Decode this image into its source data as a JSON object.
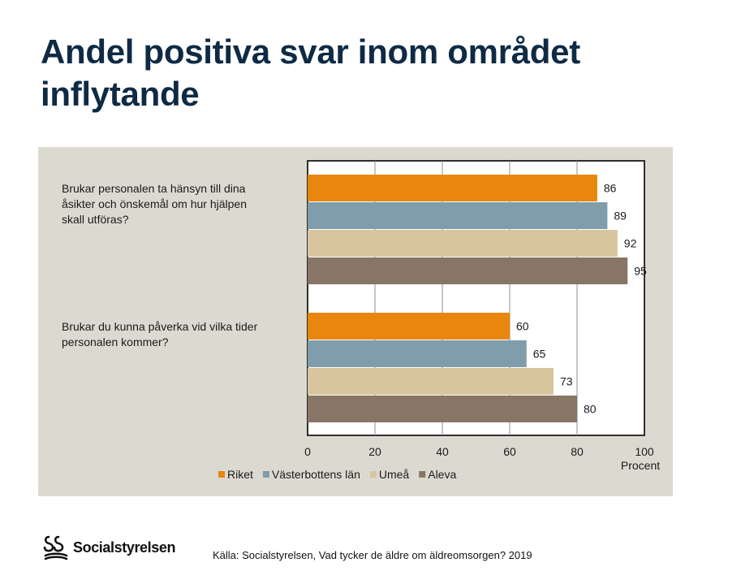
{
  "page": {
    "title": "Andel positiva svar inom området inflytande",
    "source": "Källa: Socialstyrelsen, Vad tycker de äldre om äldreomsorgen? 2019",
    "logo_text": "Socialstyrelsen"
  },
  "chart_data": {
    "type": "bar",
    "orientation": "horizontal",
    "categories": [
      "Brukar personalen ta hänsyn till dina åsikter och önskemål om hur hjälpen skall utföras?",
      "Brukar du kunna påverka vid vilka tider personalen kommer?"
    ],
    "category_lines": [
      [
        "Brukar personalen ta hänsyn till dina",
        "åsikter och önskemål om hur hjälpen",
        "skall utföras?"
      ],
      [
        "Brukar du kunna påverka vid vilka tider",
        "personalen kommer?"
      ]
    ],
    "series": [
      {
        "name": "Riket",
        "color": "#e8860e",
        "values": [
          86,
          60
        ]
      },
      {
        "name": "Västerbottens län",
        "color": "#7f9dab",
        "values": [
          89,
          65
        ]
      },
      {
        "name": "Umeå",
        "color": "#d6c59f",
        "values": [
          92,
          73
        ]
      },
      {
        "name": "Aleva",
        "color": "#877566",
        "values": [
          95,
          80
        ]
      }
    ],
    "xlabel": "Procent",
    "xlim": [
      0,
      100
    ],
    "xticks": [
      0,
      20,
      40,
      60,
      80,
      100
    ],
    "grid": true,
    "legend": "bottom"
  }
}
